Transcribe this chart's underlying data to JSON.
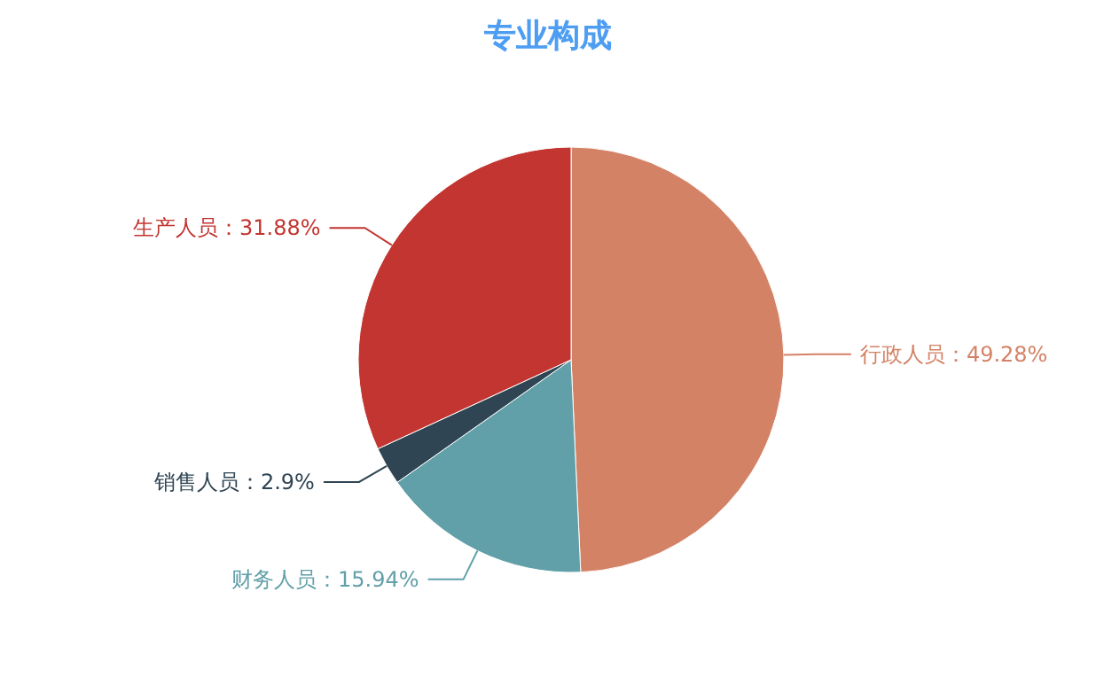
{
  "chart_data": {
    "type": "pie",
    "title": "专业构成",
    "categories": [
      "行政人员",
      "财务人员",
      "销售人员",
      "生产人员"
    ],
    "values": [
      49.28,
      15.94,
      2.9,
      31.88
    ],
    "value_labels": [
      "49.28%",
      "15.94%",
      "2.9%",
      "31.88%"
    ],
    "colors": [
      "#d48265",
      "#61a0a8",
      "#2f4554",
      "#c23531"
    ]
  }
}
